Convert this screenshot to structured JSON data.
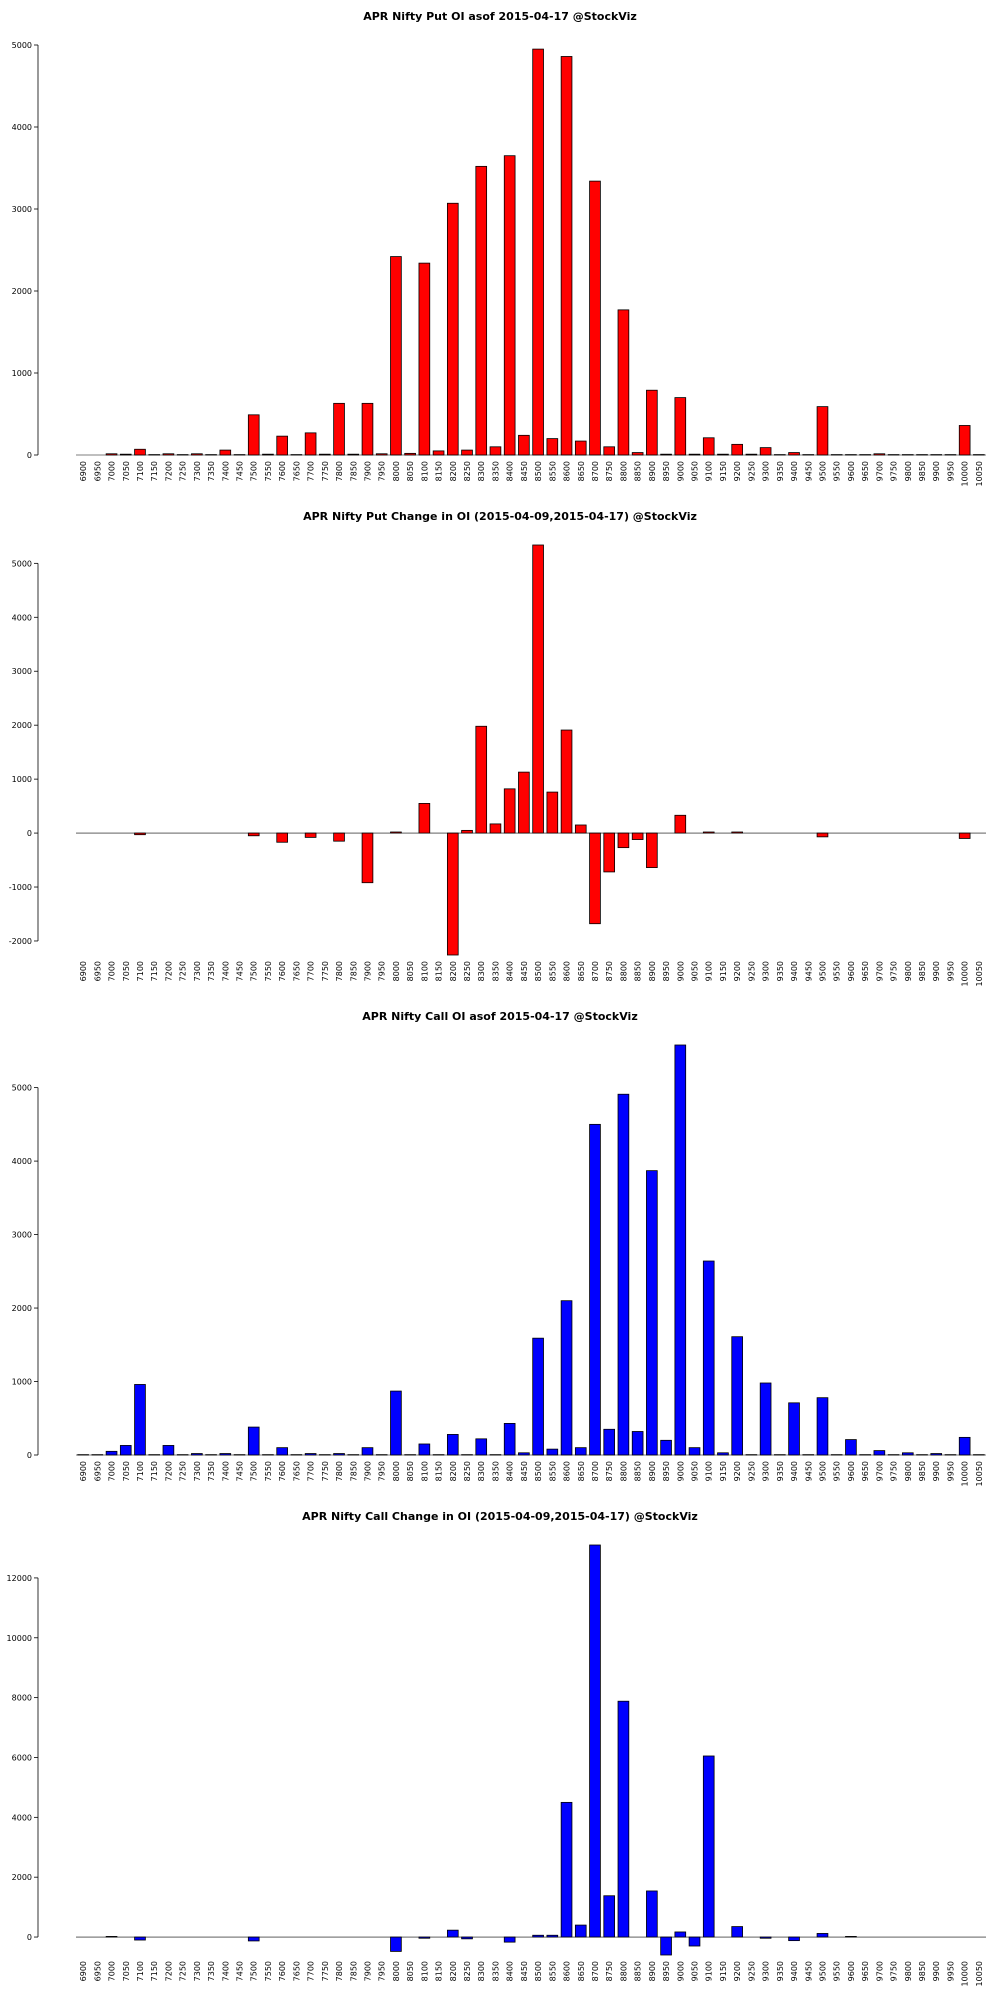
{
  "charts": [
    {
      "chart_data": {
        "type": "bar",
        "title": "APR Nifty Put OI asof 2015-04-17 @StockViz",
        "color": "#ff0000",
        "categories": [
          "6900",
          "6950",
          "7000",
          "7050",
          "7100",
          "7150",
          "7200",
          "7250",
          "7300",
          "7350",
          "7400",
          "7450",
          "7500",
          "7550",
          "7600",
          "7650",
          "7700",
          "7750",
          "7800",
          "7850",
          "7900",
          "7950",
          "8000",
          "8050",
          "8100",
          "8150",
          "8200",
          "8250",
          "8300",
          "8350",
          "8400",
          "8450",
          "8500",
          "8550",
          "8600",
          "8650",
          "8700",
          "8750",
          "8800",
          "8850",
          "8900",
          "8950",
          "9000",
          "9050",
          "9100",
          "9150",
          "9200",
          "9250",
          "9300",
          "9350",
          "9400",
          "9450",
          "9500",
          "9550",
          "9600",
          "9650",
          "9700",
          "9750",
          "9800",
          "9850",
          "9900",
          "9950",
          "10000",
          "10050"
        ],
        "values": [
          0,
          0,
          15,
          10,
          70,
          5,
          15,
          5,
          15,
          5,
          60,
          5,
          490,
          10,
          230,
          5,
          270,
          10,
          630,
          10,
          630,
          15,
          2420,
          20,
          2340,
          50,
          3070,
          60,
          3520,
          100,
          3650,
          240,
          4950,
          200,
          4860,
          170,
          3340,
          100,
          1770,
          30,
          790,
          10,
          700,
          10,
          210,
          10,
          130,
          10,
          90,
          5,
          30,
          5,
          590,
          5,
          5,
          5,
          15,
          5,
          5,
          5,
          5,
          5,
          360,
          5
        ],
        "ylim": [
          0,
          5000
        ],
        "yticks": [
          0,
          1000,
          2000,
          3000,
          4000,
          5000
        ]
      }
    },
    {
      "chart_data": {
        "type": "bar",
        "title": "APR Nifty Put Change in OI (2015-04-09,2015-04-17) @StockViz",
        "color": "#ff0000",
        "categories": [
          "6900",
          "6950",
          "7000",
          "7050",
          "7100",
          "7150",
          "7200",
          "7250",
          "7300",
          "7350",
          "7400",
          "7450",
          "7500",
          "7550",
          "7600",
          "7650",
          "7700",
          "7750",
          "7800",
          "7850",
          "7900",
          "7950",
          "8000",
          "8050",
          "8100",
          "8150",
          "8200",
          "8250",
          "8300",
          "8350",
          "8400",
          "8450",
          "8500",
          "8550",
          "8600",
          "8650",
          "8700",
          "8750",
          "8800",
          "8850",
          "8900",
          "8950",
          "9000",
          "9050",
          "9100",
          "9150",
          "9200",
          "9250",
          "9300",
          "9350",
          "9400",
          "9450",
          "9500",
          "9550",
          "9600",
          "9650",
          "9700",
          "9750",
          "9800",
          "9850",
          "9900",
          "9950",
          "10000",
          "10050"
        ],
        "values": [
          0,
          0,
          0,
          0,
          -30,
          0,
          0,
          0,
          0,
          0,
          0,
          0,
          -50,
          0,
          -170,
          0,
          -80,
          0,
          -150,
          0,
          -920,
          0,
          20,
          0,
          550,
          0,
          -2260,
          50,
          1980,
          170,
          820,
          1130,
          5340,
          760,
          1910,
          150,
          -1680,
          -720,
          -270,
          -120,
          -640,
          0,
          330,
          0,
          20,
          0,
          20,
          0,
          0,
          0,
          0,
          0,
          -70,
          0,
          0,
          0,
          0,
          0,
          0,
          0,
          0,
          0,
          -100,
          0
        ],
        "ylim": [
          -2260,
          5340
        ],
        "yticks": [
          -2000,
          -1000,
          0,
          1000,
          2000,
          3000,
          4000,
          5000
        ]
      }
    },
    {
      "chart_data": {
        "type": "bar",
        "title": "APR Nifty Call OI asof 2015-04-17 @StockViz",
        "color": "#0000ff",
        "categories": [
          "6900",
          "6950",
          "7000",
          "7050",
          "7100",
          "7150",
          "7200",
          "7250",
          "7300",
          "7350",
          "7400",
          "7450",
          "7500",
          "7550",
          "7600",
          "7650",
          "7700",
          "7750",
          "7800",
          "7850",
          "7900",
          "7950",
          "8000",
          "8050",
          "8100",
          "8150",
          "8200",
          "8250",
          "8300",
          "8350",
          "8400",
          "8450",
          "8500",
          "8550",
          "8600",
          "8650",
          "8700",
          "8750",
          "8800",
          "8850",
          "8900",
          "8950",
          "9000",
          "9050",
          "9100",
          "9150",
          "9200",
          "9250",
          "9300",
          "9350",
          "9400",
          "9450",
          "9500",
          "9550",
          "9600",
          "9650",
          "9700",
          "9750",
          "9800",
          "9850",
          "9900",
          "9950",
          "10000",
          "10050"
        ],
        "values": [
          5,
          5,
          50,
          130,
          960,
          5,
          130,
          5,
          20,
          5,
          20,
          5,
          380,
          5,
          100,
          5,
          20,
          5,
          20,
          5,
          100,
          5,
          870,
          5,
          150,
          5,
          280,
          5,
          220,
          5,
          430,
          30,
          1590,
          80,
          2100,
          100,
          4500,
          350,
          4910,
          320,
          3870,
          200,
          5580,
          100,
          2640,
          30,
          1610,
          5,
          980,
          5,
          710,
          5,
          780,
          5,
          210,
          5,
          60,
          5,
          30,
          5,
          20,
          5,
          240,
          5
        ],
        "ylim": [
          0,
          5580
        ],
        "yticks": [
          0,
          1000,
          2000,
          3000,
          4000,
          5000
        ]
      }
    },
    {
      "chart_data": {
        "type": "bar",
        "title": "APR Nifty Call Change in OI (2015-04-09,2015-04-17) @StockViz",
        "color": "#0000ff",
        "categories": [
          "6900",
          "6950",
          "7000",
          "7050",
          "7100",
          "7150",
          "7200",
          "7250",
          "7300",
          "7350",
          "7400",
          "7450",
          "7500",
          "7550",
          "7600",
          "7650",
          "7700",
          "7750",
          "7800",
          "7850",
          "7900",
          "7950",
          "8000",
          "8050",
          "8100",
          "8150",
          "8200",
          "8250",
          "8300",
          "8350",
          "8400",
          "8450",
          "8500",
          "8550",
          "8600",
          "8650",
          "8700",
          "8750",
          "8800",
          "8850",
          "8900",
          "8950",
          "9000",
          "9050",
          "9100",
          "9150",
          "9200",
          "9250",
          "9300",
          "9350",
          "9400",
          "9450",
          "9500",
          "9550",
          "9600",
          "9650",
          "9700",
          "9750",
          "9800",
          "9850",
          "9900",
          "9950",
          "10000",
          "10050"
        ],
        "values": [
          0,
          0,
          20,
          0,
          -100,
          0,
          0,
          0,
          0,
          0,
          0,
          0,
          -130,
          0,
          0,
          0,
          0,
          0,
          0,
          0,
          0,
          0,
          -480,
          0,
          -40,
          0,
          230,
          -60,
          0,
          0,
          -170,
          0,
          60,
          60,
          4500,
          400,
          13100,
          1380,
          7880,
          0,
          1540,
          -600,
          170,
          -300,
          6050,
          0,
          350,
          0,
          -40,
          0,
          -120,
          0,
          120,
          0,
          20,
          0,
          0,
          0,
          0,
          0,
          0,
          0,
          0,
          0
        ],
        "ylim": [
          -600,
          13100
        ],
        "yticks": [
          0,
          2000,
          4000,
          6000,
          8000,
          10000,
          12000
        ]
      }
    }
  ]
}
